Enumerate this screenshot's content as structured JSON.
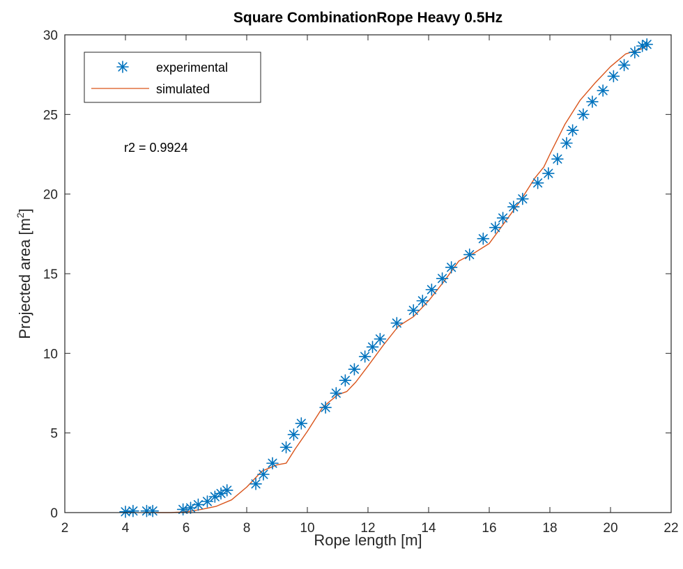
{
  "chart_data": {
    "type": "scatter",
    "title": "Square CombinationRope Heavy 0.5Hz",
    "xlabel": "Rope length [m]",
    "ylabel": "Projected area [m",
    "ylabel_sup": "2",
    "ylabel_end": "]",
    "xlim": [
      2,
      22
    ],
    "ylim": [
      0,
      30
    ],
    "xticks": [
      2,
      4,
      6,
      8,
      10,
      12,
      14,
      16,
      18,
      20,
      22
    ],
    "yticks": [
      0,
      5,
      10,
      15,
      20,
      25,
      30
    ],
    "grid": false,
    "box": true,
    "legend_position": "top-left",
    "annotation": "r2 = 0.9924",
    "series": [
      {
        "name": "experimental",
        "kind": "markers",
        "marker": "asterisk",
        "color": "#0072BD",
        "x": [
          4.0,
          4.25,
          4.7,
          4.9,
          5.9,
          6.15,
          6.4,
          6.7,
          6.95,
          7.15,
          7.35,
          8.3,
          8.55,
          8.85,
          9.3,
          9.55,
          9.8,
          10.6,
          10.95,
          11.25,
          11.55,
          11.9,
          12.15,
          12.4,
          12.95,
          13.5,
          13.8,
          14.1,
          14.45,
          14.75,
          15.35,
          15.8,
          16.2,
          16.45,
          16.8,
          17.1,
          17.6,
          17.95,
          18.25,
          18.55,
          18.75,
          19.1,
          19.4,
          19.75,
          20.1,
          20.45,
          20.8,
          21.05,
          21.2
        ],
        "y": [
          0.05,
          0.1,
          0.1,
          0.1,
          0.2,
          0.3,
          0.5,
          0.7,
          1.0,
          1.2,
          1.4,
          1.8,
          2.4,
          3.1,
          4.1,
          4.9,
          5.6,
          6.6,
          7.5,
          8.3,
          9.0,
          9.8,
          10.4,
          10.9,
          11.9,
          12.7,
          13.3,
          14.0,
          14.7,
          15.4,
          16.2,
          17.2,
          17.9,
          18.5,
          19.2,
          19.7,
          20.7,
          21.3,
          22.2,
          23.2,
          24.0,
          25.0,
          25.8,
          26.5,
          27.4,
          28.1,
          28.9,
          29.3,
          29.4
        ]
      },
      {
        "name": "simulated",
        "kind": "line",
        "color": "#D95319",
        "x": [
          5.0,
          5.5,
          6.0,
          6.5,
          7.0,
          7.5,
          8.0,
          8.5,
          9.0,
          9.3,
          9.6,
          10.0,
          10.5,
          11.0,
          11.3,
          11.6,
          12.0,
          12.5,
          13.0,
          13.5,
          14.0,
          14.5,
          15.0,
          15.5,
          16.0,
          16.5,
          17.0,
          17.5,
          17.8,
          18.0,
          18.5,
          19.0,
          19.5,
          20.0,
          20.5,
          21.0,
          21.2
        ],
        "y": [
          0.0,
          0.0,
          0.05,
          0.2,
          0.4,
          0.8,
          1.6,
          2.6,
          3.0,
          3.1,
          4.0,
          5.1,
          6.6,
          7.4,
          7.6,
          8.2,
          9.2,
          10.5,
          11.7,
          12.3,
          13.3,
          14.5,
          15.8,
          16.3,
          16.9,
          18.2,
          19.5,
          21.0,
          21.7,
          22.5,
          24.4,
          25.9,
          27.0,
          28.0,
          28.8,
          29.1,
          29.3
        ]
      }
    ]
  }
}
